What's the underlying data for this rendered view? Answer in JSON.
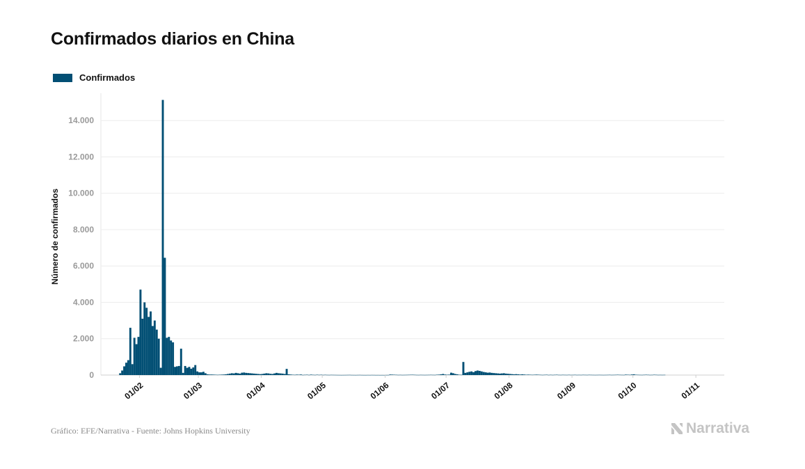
{
  "title": "Confirmados diarios en China",
  "legend": {
    "label": "Confirmados",
    "color": "#024f74"
  },
  "footer": "Gráfico: EFE/Narrativa - Fuente: Johns Hopkins University",
  "brand": {
    "name": "Narrativa",
    "color": "#c4c4c4"
  },
  "chart_data": {
    "type": "bar",
    "title": "Confirmados diarios en China",
    "ylabel": "Número de confirmados",
    "xlabel": "",
    "ylim": [
      0,
      15500
    ],
    "yticks": [
      0,
      2000,
      4000,
      6000,
      8000,
      10000,
      12000,
      14000
    ],
    "ytick_labels": [
      "0",
      "2.000",
      "4.000",
      "6.000",
      "8.000",
      "10.000",
      "12.000",
      "14.000"
    ],
    "xticks": [
      "2020-02-01",
      "2020-03-01",
      "2020-04-01",
      "2020-05-01",
      "2020-06-01",
      "2020-07-01",
      "2020-08-01",
      "2020-09-01",
      "2020-10-01",
      "2020-11-01"
    ],
    "xtick_labels": [
      "01/02",
      "01/03",
      "01/04",
      "01/05",
      "01/06",
      "01/07",
      "01/08",
      "01/09",
      "01/10",
      "01/11"
    ],
    "grid": true,
    "legend_position": "top-left",
    "series": [
      {
        "name": "Confirmados",
        "color": "#024f74",
        "start_date": "2020-01-22",
        "values": [
          100,
          250,
          480,
          680,
          820,
          2600,
          600,
          2050,
          1700,
          2100,
          4700,
          3100,
          4000,
          3700,
          3200,
          3500,
          2700,
          3000,
          2500,
          2000,
          400,
          15133,
          6450,
          2050,
          2100,
          1900,
          1800,
          450,
          480,
          500,
          1450,
          120,
          500,
          400,
          450,
          350,
          420,
          550,
          200,
          150,
          150,
          180,
          100,
          40,
          30,
          30,
          25,
          20,
          15,
          20,
          25,
          30,
          40,
          60,
          80,
          100,
          90,
          120,
          100,
          80,
          130,
          140,
          120,
          110,
          100,
          90,
          80,
          70,
          60,
          50,
          60,
          80,
          100,
          90,
          70,
          60,
          90,
          120,
          100,
          90,
          80,
          60,
          340,
          40,
          30,
          20,
          15,
          25,
          20,
          30,
          10,
          15,
          20,
          10,
          25,
          15,
          10,
          20,
          12,
          18,
          10,
          15,
          10,
          8,
          12,
          10,
          8,
          6,
          5,
          4,
          5,
          6,
          8,
          10,
          6,
          5,
          4,
          6,
          8,
          5,
          4,
          3,
          5,
          4,
          6,
          5,
          3,
          4,
          2,
          3,
          2,
          5,
          6,
          30,
          25,
          20,
          15,
          10,
          12,
          8,
          10,
          12,
          15,
          18,
          20,
          15,
          10,
          8,
          12,
          10,
          8,
          10,
          12,
          15,
          12,
          10,
          20,
          25,
          40,
          60,
          30,
          20,
          25,
          130,
          100,
          60,
          40,
          20,
          15,
          720,
          120,
          150,
          180,
          200,
          160,
          220,
          250,
          230,
          200,
          170,
          150,
          130,
          140,
          120,
          110,
          100,
          90,
          80,
          90,
          100,
          80,
          70,
          60,
          50,
          40,
          50,
          40,
          30,
          40,
          30,
          20,
          25,
          20,
          15,
          20,
          25,
          20,
          15,
          10,
          15,
          20,
          10,
          15,
          10,
          15,
          20,
          12,
          10,
          15,
          12,
          10,
          15,
          10,
          12,
          15,
          10,
          12,
          10,
          15,
          12,
          10,
          15,
          12,
          10,
          8,
          10,
          12,
          10,
          8,
          10,
          12,
          15,
          10,
          12,
          15,
          20,
          15,
          12,
          10,
          25,
          20,
          15,
          30,
          40,
          20,
          15,
          12,
          10,
          15,
          20,
          15,
          10,
          12,
          20,
          15,
          10,
          12,
          10,
          12
        ]
      }
    ]
  }
}
